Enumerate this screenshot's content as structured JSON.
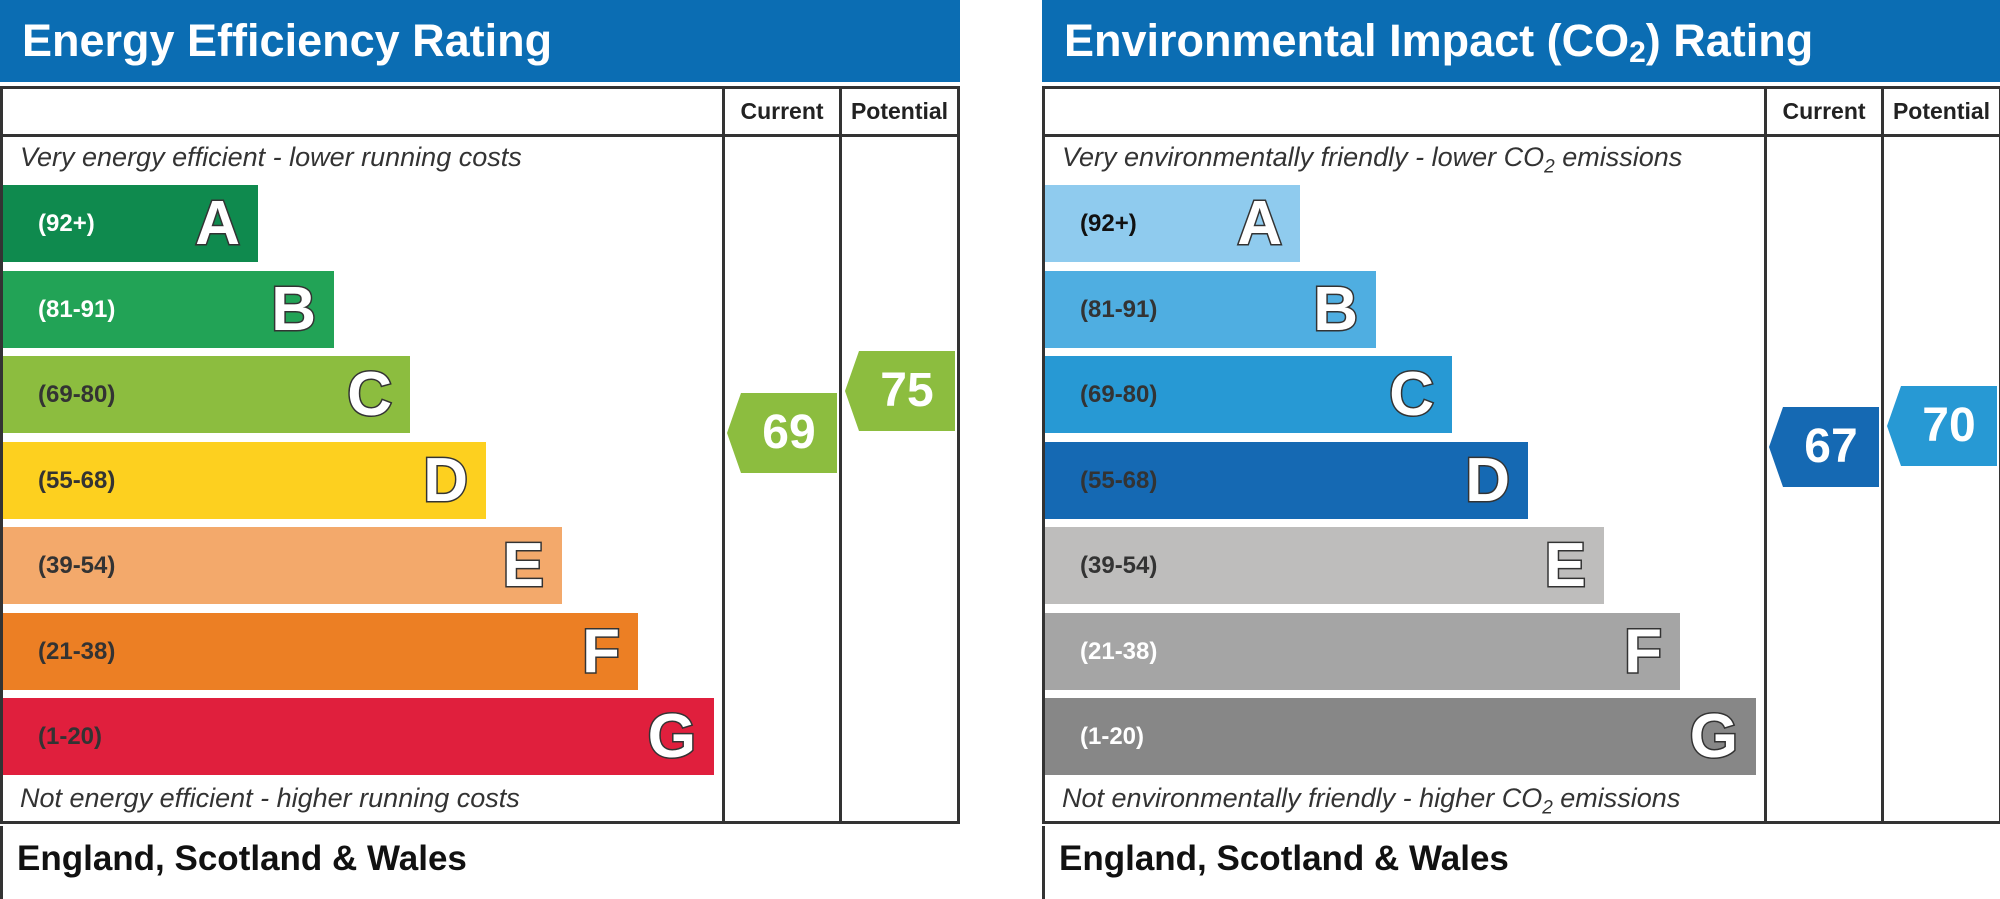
{
  "chart_data": [
    {
      "type": "bar",
      "title": "Energy Efficiency Rating",
      "columns": [
        "Current",
        "Potential"
      ],
      "top_note": "Very energy efficient - lower running costs",
      "bottom_note": "Not energy efficient - higher running costs",
      "footer": "England, Scotland & Wales",
      "bands": [
        {
          "letter": "A",
          "range": "(92+)",
          "color": "#0f8a4e",
          "text_color": "#ffffff"
        },
        {
          "letter": "B",
          "range": "(81-91)",
          "color": "#22a356",
          "text_color": "#ffffff"
        },
        {
          "letter": "C",
          "range": "(69-80)",
          "color": "#8cbd3f",
          "text_color": "#333333"
        },
        {
          "letter": "D",
          "range": "(55-68)",
          "color": "#fdd01f",
          "text_color": "#333333"
        },
        {
          "letter": "E",
          "range": "(39-54)",
          "color": "#f3a96b",
          "text_color": "#333333"
        },
        {
          "letter": "F",
          "range": "(21-38)",
          "color": "#ec7f24",
          "text_color": "#333333"
        },
        {
          "letter": "G",
          "range": "(1-20)",
          "color": "#e01f3d",
          "text_color": "#333333"
        }
      ],
      "current": {
        "value": "69",
        "band": "C",
        "color": "#8cbd3f"
      },
      "potential": {
        "value": "75",
        "band": "C",
        "color": "#8cbd3f"
      }
    },
    {
      "type": "bar",
      "title_parts": [
        "Environmental Impact (CO",
        "2",
        ") Rating"
      ],
      "columns": [
        "Current",
        "Potential"
      ],
      "top_note_parts": [
        "Very environmentally friendly - lower CO",
        "2",
        " emissions"
      ],
      "bottom_note_parts": [
        "Not environmentally friendly - higher CO",
        "2",
        " emissions"
      ],
      "footer": "England, Scotland & Wales",
      "bands": [
        {
          "letter": "A",
          "range": "(92+)",
          "color": "#8fcbee",
          "text_color": "#111111"
        },
        {
          "letter": "B",
          "range": "(81-91)",
          "color": "#4faee1",
          "text_color": "#333333"
        },
        {
          "letter": "C",
          "range": "(69-80)",
          "color": "#2799d4",
          "text_color": "#333333"
        },
        {
          "letter": "D",
          "range": "(55-68)",
          "color": "#1569b3",
          "text_color": "#333333"
        },
        {
          "letter": "E",
          "range": "(39-54)",
          "color": "#bebdbc",
          "text_color": "#333333"
        },
        {
          "letter": "F",
          "range": "(21-38)",
          "color": "#a5a5a5",
          "text_color": "#ffffff"
        },
        {
          "letter": "G",
          "range": "(1-20)",
          "color": "#878787",
          "text_color": "#ffffff"
        }
      ],
      "current": {
        "value": "67",
        "band": "D",
        "color": "#1569b3"
      },
      "potential": {
        "value": "70",
        "band": "C",
        "color": "#2799d4"
      }
    }
  ]
}
